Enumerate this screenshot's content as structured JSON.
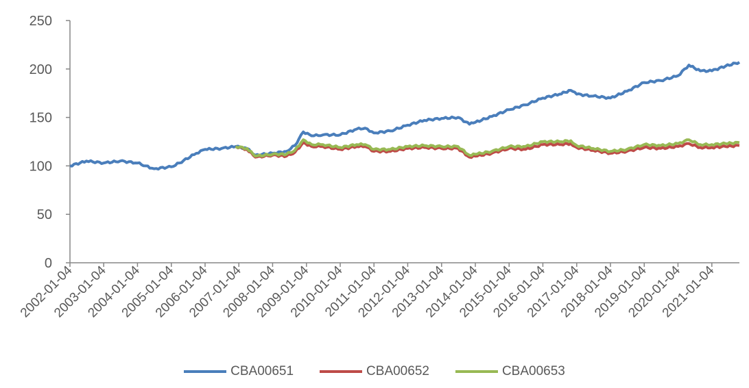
{
  "chart_data": {
    "type": "line",
    "title": "",
    "xlabel": "",
    "ylabel": "",
    "ylim": [
      0,
      250
    ],
    "yticks": [
      0,
      50,
      100,
      150,
      200,
      250
    ],
    "xlim": [
      "2002-01-04",
      "2021-10-29"
    ],
    "xtick_labels": [
      "2002-01-04",
      "2003-01-04",
      "2004-01-04",
      "2005-01-04",
      "2006-01-04",
      "2007-01-04",
      "2008-01-04",
      "2009-01-04",
      "2010-01-04",
      "2011-01-04",
      "2012-01-04",
      "2013-01-04",
      "2014-01-04",
      "2015-01-04",
      "2016-01-04",
      "2017-01-04",
      "2018-01-04",
      "2019-01-04",
      "2020-01-04",
      "2021-01-04"
    ],
    "grid": false,
    "legend_position": "bottom",
    "series": [
      {
        "name": "CBA00651",
        "color": "#4a7ebb",
        "points": [
          [
            "2002-01-04",
            100
          ],
          [
            "2002-07-01",
            105
          ],
          [
            "2003-01-04",
            103
          ],
          [
            "2003-07-01",
            105
          ],
          [
            "2004-01-04",
            103
          ],
          [
            "2004-04-01",
            100
          ],
          [
            "2004-07-01",
            97
          ],
          [
            "2005-01-04",
            99
          ],
          [
            "2005-04-01",
            103
          ],
          [
            "2005-10-01",
            113
          ],
          [
            "2006-01-04",
            117
          ],
          [
            "2006-07-01",
            118
          ],
          [
            "2006-12-01",
            120
          ],
          [
            "2007-04-01",
            118
          ],
          [
            "2007-07-01",
            111
          ],
          [
            "2008-01-04",
            113
          ],
          [
            "2008-06-01",
            115
          ],
          [
            "2008-09-01",
            121
          ],
          [
            "2008-12-01",
            135
          ],
          [
            "2009-03-01",
            131
          ],
          [
            "2009-07-01",
            132
          ],
          [
            "2010-01-04",
            132
          ],
          [
            "2010-07-01",
            138
          ],
          [
            "2010-10-01",
            139
          ],
          [
            "2011-01-04",
            134
          ],
          [
            "2011-07-01",
            136
          ],
          [
            "2012-01-04",
            142
          ],
          [
            "2012-07-01",
            147
          ],
          [
            "2013-01-04",
            149
          ],
          [
            "2013-07-01",
            150
          ],
          [
            "2013-11-01",
            143
          ],
          [
            "2014-01-04",
            145
          ],
          [
            "2014-07-01",
            151
          ],
          [
            "2015-01-04",
            158
          ],
          [
            "2015-07-01",
            163
          ],
          [
            "2016-01-04",
            170
          ],
          [
            "2016-07-01",
            174
          ],
          [
            "2016-11-01",
            178
          ],
          [
            "2017-01-04",
            174
          ],
          [
            "2017-07-01",
            172
          ],
          [
            "2018-01-04",
            170
          ],
          [
            "2018-07-01",
            177
          ],
          [
            "2019-01-04",
            186
          ],
          [
            "2019-07-01",
            188
          ],
          [
            "2020-01-04",
            193
          ],
          [
            "2020-05-01",
            204
          ],
          [
            "2020-09-01",
            198
          ],
          [
            "2021-01-04",
            198
          ],
          [
            "2021-06-01",
            203
          ],
          [
            "2021-10-29",
            207
          ]
        ]
      },
      {
        "name": "CBA00652",
        "color": "#be4b48",
        "points": [
          [
            "2006-12-01",
            120
          ],
          [
            "2007-04-01",
            117
          ],
          [
            "2007-07-01",
            109
          ],
          [
            "2008-01-04",
            111
          ],
          [
            "2008-06-01",
            110
          ],
          [
            "2008-09-01",
            114
          ],
          [
            "2008-12-01",
            124
          ],
          [
            "2009-03-01",
            120
          ],
          [
            "2009-07-01",
            120
          ],
          [
            "2010-01-04",
            117
          ],
          [
            "2010-07-01",
            120
          ],
          [
            "2010-10-01",
            120
          ],
          [
            "2011-01-04",
            115
          ],
          [
            "2011-07-01",
            115
          ],
          [
            "2012-01-04",
            118
          ],
          [
            "2012-07-01",
            119
          ],
          [
            "2013-01-04",
            118
          ],
          [
            "2013-07-01",
            118
          ],
          [
            "2013-11-01",
            109
          ],
          [
            "2014-01-04",
            110
          ],
          [
            "2014-07-01",
            113
          ],
          [
            "2015-01-04",
            118
          ],
          [
            "2015-07-01",
            117
          ],
          [
            "2016-01-04",
            122
          ],
          [
            "2016-07-01",
            122
          ],
          [
            "2016-11-01",
            123
          ],
          [
            "2017-01-04",
            119
          ],
          [
            "2017-07-01",
            116
          ],
          [
            "2018-01-04",
            113
          ],
          [
            "2018-07-01",
            115
          ],
          [
            "2019-01-04",
            119
          ],
          [
            "2019-07-01",
            118
          ],
          [
            "2020-01-04",
            120
          ],
          [
            "2020-05-01",
            123
          ],
          [
            "2020-09-01",
            119
          ],
          [
            "2021-01-04",
            119
          ],
          [
            "2021-06-01",
            120
          ],
          [
            "2021-10-29",
            121
          ]
        ]
      },
      {
        "name": "CBA00653",
        "color": "#98b954",
        "points": [
          [
            "2006-12-01",
            120
          ],
          [
            "2007-04-01",
            118
          ],
          [
            "2007-07-01",
            110
          ],
          [
            "2008-01-04",
            112
          ],
          [
            "2008-06-01",
            112
          ],
          [
            "2008-09-01",
            116
          ],
          [
            "2008-12-01",
            127
          ],
          [
            "2009-03-01",
            122
          ],
          [
            "2009-07-01",
            122
          ],
          [
            "2010-01-04",
            119
          ],
          [
            "2010-07-01",
            122
          ],
          [
            "2010-10-01",
            122
          ],
          [
            "2011-01-04",
            117
          ],
          [
            "2011-07-01",
            117
          ],
          [
            "2012-01-04",
            120
          ],
          [
            "2012-07-01",
            121
          ],
          [
            "2013-01-04",
            120
          ],
          [
            "2013-07-01",
            120
          ],
          [
            "2013-11-01",
            111
          ],
          [
            "2014-01-04",
            112
          ],
          [
            "2014-07-01",
            115
          ],
          [
            "2015-01-04",
            120
          ],
          [
            "2015-07-01",
            120
          ],
          [
            "2016-01-04",
            125
          ],
          [
            "2016-07-01",
            125
          ],
          [
            "2016-11-01",
            126
          ],
          [
            "2017-01-04",
            121
          ],
          [
            "2017-07-01",
            118
          ],
          [
            "2018-01-04",
            115
          ],
          [
            "2018-07-01",
            117
          ],
          [
            "2019-01-04",
            122
          ],
          [
            "2019-07-01",
            121
          ],
          [
            "2020-01-04",
            123
          ],
          [
            "2020-05-01",
            127
          ],
          [
            "2020-09-01",
            122
          ],
          [
            "2021-01-04",
            122
          ],
          [
            "2021-06-01",
            123
          ],
          [
            "2021-10-29",
            124
          ]
        ]
      }
    ]
  }
}
